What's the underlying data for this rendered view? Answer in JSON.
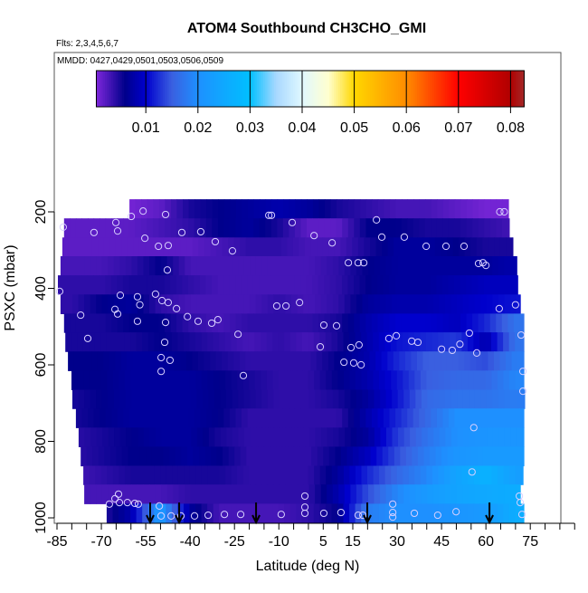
{
  "chart_data": {
    "type": "heatmap",
    "title": "ATOM4 Southbound CH3CHO_GMI",
    "subtitle_flights": "Flts: 2,3,4,5,6,7",
    "subtitle_dates": "MMDD: 0427,0429,0501,0503,0506,0509",
    "xlabel": "Latitude (deg N)",
    "ylabel": "PSXC (mbar)",
    "xlim": [
      -86,
      90
    ],
    "ylim_reversed": [
      1000,
      -217
    ],
    "x_ticks": [
      -85,
      -70,
      -55,
      -40,
      -25,
      -10,
      5,
      15,
      30,
      45,
      60,
      75
    ],
    "y_ticks": [
      200,
      400,
      600,
      800,
      1000
    ],
    "colorbar": {
      "range": [
        0.0005,
        0.0826
      ],
      "ticks": [
        "0.01",
        "0.02",
        "0.03",
        "0.04",
        "0.05",
        "0.06",
        "0.07",
        "0.08"
      ],
      "tick_values": [
        0.01,
        0.02,
        0.03,
        0.04,
        0.05,
        0.06,
        0.07,
        0.08
      ],
      "stops": [
        [
          0,
          "#8a2be2"
        ],
        [
          0.006,
          "#00008b"
        ],
        [
          0.01,
          "#0000cd"
        ],
        [
          0.015,
          "#3a5fe0"
        ],
        [
          0.02,
          "#1e90ff"
        ],
        [
          0.03,
          "#00c0ff"
        ],
        [
          0.035,
          "#a8d8ff"
        ],
        [
          0.04,
          "#e0f8ff"
        ],
        [
          0.045,
          "#ffffd0"
        ],
        [
          0.05,
          "#ffd700"
        ],
        [
          0.06,
          "#ff8c00"
        ],
        [
          0.07,
          "#ff0000"
        ],
        [
          0.08,
          "#b00000"
        ],
        [
          0.0826,
          "#a52a2a"
        ]
      ]
    },
    "anchor_lats": [
      -80,
      -70,
      -60,
      -50,
      -40,
      -30,
      -20,
      -10,
      0,
      10,
      20,
      30,
      40,
      50,
      60,
      70
    ],
    "pressure_bands": [
      {
        "p": [
          167,
          217
        ],
        "lat": [
          -60.5,
          67.6
        ],
        "v": [
          0.001,
          0.001,
          0.001,
          0.002,
          0.005,
          0.006,
          0.007,
          0.008,
          0.007,
          0.005,
          0.004,
          0.003,
          0.003,
          0.002,
          0.001,
          0.001
        ]
      },
      {
        "p": [
          217,
          267
        ],
        "lat": [
          -82.6,
          67.9
        ],
        "v": [
          0.002,
          0.002,
          0.002,
          0.003,
          0.004,
          0.006,
          0.007,
          0.005,
          0.002,
          0.002,
          0.006,
          0.006,
          0.005,
          0.005,
          0.004,
          0.003
        ]
      },
      {
        "p": [
          267,
          316
        ],
        "lat": [
          -83.2,
          69.1
        ],
        "v": [
          0.002,
          0.002,
          0.002,
          0.002,
          0.002,
          0.003,
          0.004,
          0.004,
          0.003,
          0.003,
          0.005,
          0.007,
          0.007,
          0.006,
          0.005,
          0.005
        ]
      },
      {
        "p": [
          316,
          366
        ],
        "lat": [
          -83.8,
          70.4
        ],
        "v": [
          0.003,
          0.003,
          0.004,
          0.006,
          0.003,
          0.003,
          0.003,
          0.003,
          0.003,
          0.004,
          0.006,
          0.007,
          0.007,
          0.007,
          0.007,
          0.008
        ]
      },
      {
        "p": [
          366,
          416
        ],
        "lat": [
          -84.7,
          70.7
        ],
        "v": [
          0.004,
          0.004,
          0.005,
          0.005,
          0.004,
          0.003,
          0.003,
          0.003,
          0.003,
          0.004,
          0.006,
          0.007,
          0.007,
          0.008,
          0.009,
          0.009
        ]
      },
      {
        "p": [
          416,
          466
        ],
        "lat": [
          -83.8,
          71.6
        ],
        "v": [
          0.004,
          0.006,
          0.007,
          0.004,
          0.003,
          0.003,
          0.003,
          0.004,
          0.003,
          0.004,
          0.007,
          0.008,
          0.008,
          0.009,
          0.01,
          0.011
        ]
      },
      {
        "p": [
          466,
          515
        ],
        "lat": [
          -82.6,
          72.8
        ],
        "v": [
          0.005,
          0.005,
          0.006,
          0.006,
          0.004,
          0.003,
          0.004,
          0.004,
          0.004,
          0.005,
          0.008,
          0.01,
          0.01,
          0.009,
          0.012,
          0.017
        ]
      },
      {
        "p": [
          515,
          565
        ],
        "lat": [
          -82.2,
          72.8
        ],
        "v": [
          0.005,
          0.005,
          0.005,
          0.006,
          0.005,
          0.004,
          0.003,
          0.004,
          0.003,
          0.005,
          0.008,
          0.011,
          0.012,
          0.013,
          0.008,
          0.017
        ]
      },
      {
        "p": [
          565,
          615
        ],
        "lat": [
          -81.3,
          72.8
        ],
        "v": [
          0.006,
          0.006,
          0.007,
          0.007,
          0.006,
          0.005,
          0.004,
          0.004,
          0.004,
          0.006,
          0.008,
          0.012,
          0.015,
          0.015,
          0.014,
          0.018
        ]
      },
      {
        "p": [
          615,
          665
        ],
        "lat": [
          -80.1,
          72.8
        ],
        "v": [
          0.006,
          0.006,
          0.007,
          0.007,
          0.007,
          0.006,
          0.005,
          0.004,
          0.004,
          0.006,
          0.008,
          0.011,
          0.015,
          0.016,
          0.016,
          0.019
        ]
      },
      {
        "p": [
          665,
          714
        ],
        "lat": [
          -79.8,
          73.1
        ],
        "v": [
          0.005,
          0.006,
          0.007,
          0.007,
          0.007,
          0.006,
          0.005,
          0.004,
          0.004,
          0.005,
          0.007,
          0.011,
          0.016,
          0.017,
          0.017,
          0.018
        ]
      },
      {
        "p": [
          714,
          764
        ],
        "lat": [
          -78.6,
          72.8
        ],
        "v": [
          0.005,
          0.006,
          0.007,
          0.007,
          0.007,
          0.006,
          0.004,
          0.004,
          0.004,
          0.004,
          0.008,
          0.012,
          0.016,
          0.02,
          0.02,
          0.02
        ]
      },
      {
        "p": [
          764,
          814
        ],
        "lat": [
          -77.7,
          72.8
        ],
        "v": [
          0.004,
          0.005,
          0.006,
          0.007,
          0.007,
          0.005,
          0.004,
          0.004,
          0.004,
          0.005,
          0.007,
          0.013,
          0.017,
          0.02,
          0.021,
          0.021
        ]
      },
      {
        "p": [
          814,
          864
        ],
        "lat": [
          -77.0,
          72.8
        ],
        "v": [
          0.004,
          0.005,
          0.006,
          0.006,
          0.007,
          0.006,
          0.004,
          0.004,
          0.004,
          0.006,
          0.009,
          0.014,
          0.018,
          0.021,
          0.022,
          0.022
        ]
      },
      {
        "p": [
          864,
          913
        ],
        "lat": [
          -76.1,
          72.5
        ],
        "v": [
          0.003,
          0.004,
          0.005,
          0.005,
          0.005,
          0.005,
          0.004,
          0.004,
          0.004,
          0.007,
          0.012,
          0.016,
          0.019,
          0.024,
          0.027,
          0.023
        ]
      },
      {
        "p": [
          913,
          963
        ],
        "lat": [
          -75.8,
          71.6
        ],
        "v": [
          0.003,
          0.003,
          0.003,
          0.003,
          0.004,
          0.004,
          0.004,
          0.004,
          0.004,
          0.008,
          0.014,
          0.019,
          0.022,
          0.024,
          0.025,
          0.026
        ]
      },
      {
        "p": [
          963,
          1012
        ],
        "lat": [
          -68.2,
          72.8
        ],
        "v": [
          0.004,
          0.004,
          0.008,
          0.022,
          0.007,
          0.003,
          0.003,
          0.003,
          0.004,
          0.006,
          0.018,
          0.02,
          0.02,
          0.021,
          0.022,
          0.026
        ]
      }
    ],
    "observations": [
      [
        -82.9,
        240
      ],
      [
        -72.5,
        254
      ],
      [
        -65.1,
        228
      ],
      [
        -64.5,
        250
      ],
      [
        -59.9,
        212
      ],
      [
        -55.9,
        198
      ],
      [
        -48.3,
        207
      ],
      [
        -55.3,
        269
      ],
      [
        -50.7,
        290
      ],
      [
        -47.4,
        288
      ],
      [
        -42.8,
        254
      ],
      [
        -36.4,
        252
      ],
      [
        -31.5,
        278
      ],
      [
        -25.7,
        302
      ],
      [
        -13.4,
        209
      ],
      [
        -12.5,
        209
      ],
      [
        -5.5,
        228
      ],
      [
        1.9,
        262
      ],
      [
        8.0,
        281
      ],
      [
        13.5,
        333
      ],
      [
        16.8,
        333
      ],
      [
        18.7,
        333
      ],
      [
        23.0,
        221
      ],
      [
        24.8,
        266
      ],
      [
        32.4,
        266
      ],
      [
        39.8,
        290
      ],
      [
        46.5,
        290
      ],
      [
        52.6,
        290
      ],
      [
        57.5,
        335
      ],
      [
        59.0,
        333
      ],
      [
        60.0,
        340
      ],
      [
        64.7,
        200
      ],
      [
        66.2,
        200
      ],
      [
        -84.1,
        408
      ],
      [
        -77.0,
        470
      ],
      [
        -74.6,
        531
      ],
      [
        -63.6,
        418
      ],
      [
        -65.4,
        455
      ],
      [
        -64.5,
        467
      ],
      [
        -57.8,
        422
      ],
      [
        -57.0,
        443
      ],
      [
        -57.8,
        486
      ],
      [
        -51.7,
        415
      ],
      [
        -49.5,
        432
      ],
      [
        -47.4,
        437
      ],
      [
        -47.7,
        352
      ],
      [
        -48.3,
        489
      ],
      [
        -48.6,
        541
      ],
      [
        -44.6,
        453
      ],
      [
        -40.9,
        474
      ],
      [
        -37.3,
        486
      ],
      [
        -32.7,
        491
      ],
      [
        -30.6,
        482
      ],
      [
        -23.8,
        520
      ],
      [
        -49.8,
        581
      ],
      [
        -49.8,
        617
      ],
      [
        -46.8,
        588
      ],
      [
        -22.0,
        628
      ],
      [
        -10.7,
        446
      ],
      [
        -7.6,
        446
      ],
      [
        -3.0,
        437
      ],
      [
        4.0,
        553
      ],
      [
        5.2,
        496
      ],
      [
        9.5,
        498
      ],
      [
        14.4,
        555
      ],
      [
        17.1,
        548
      ],
      [
        12.0,
        593
      ],
      [
        15.3,
        595
      ],
      [
        17.8,
        600
      ],
      [
        27.2,
        531
      ],
      [
        29.7,
        524
      ],
      [
        34.9,
        538
      ],
      [
        37.0,
        541
      ],
      [
        45.0,
        559
      ],
      [
        48.6,
        562
      ],
      [
        51.2,
        546
      ],
      [
        56.9,
        569
      ],
      [
        54.4,
        517
      ],
      [
        71.9,
        522
      ],
      [
        72.5,
        617
      ],
      [
        72.5,
        669
      ],
      [
        70.0,
        443
      ],
      [
        64.5,
        453
      ],
      [
        55.9,
        764
      ],
      [
        55.3,
        880
      ],
      [
        -67.3,
        964
      ],
      [
        -65.4,
        950
      ],
      [
        -64.2,
        938
      ],
      [
        -63.9,
        960
      ],
      [
        -61.2,
        960
      ],
      [
        -58.7,
        962
      ],
      [
        -57.5,
        964
      ],
      [
        -50.4,
        969
      ],
      [
        -49.8,
        995
      ],
      [
        -46.4,
        995
      ],
      [
        -43.1,
        995
      ],
      [
        -38.5,
        995
      ],
      [
        -33.9,
        993
      ],
      [
        -28.4,
        991
      ],
      [
        -22.9,
        991
      ],
      [
        -9.2,
        991
      ],
      [
        -1.2,
        972
      ],
      [
        -1.2,
        943
      ],
      [
        -1.2,
        988
      ],
      [
        5.2,
        988
      ],
      [
        11.0,
        986
      ],
      [
        16.8,
        993
      ],
      [
        18.4,
        993
      ],
      [
        28.5,
        964
      ],
      [
        28.5,
        986
      ],
      [
        28.5,
        998
      ],
      [
        35.8,
        988
      ],
      [
        43.7,
        993
      ],
      [
        49.9,
        984
      ],
      [
        71.3,
        943
      ],
      [
        71.6,
        960
      ],
      [
        72.2,
        991
      ]
    ],
    "arrow_lats": [
      -53.5,
      -43.7,
      -17.7,
      19.9,
      61.2
    ],
    "grid": false
  }
}
